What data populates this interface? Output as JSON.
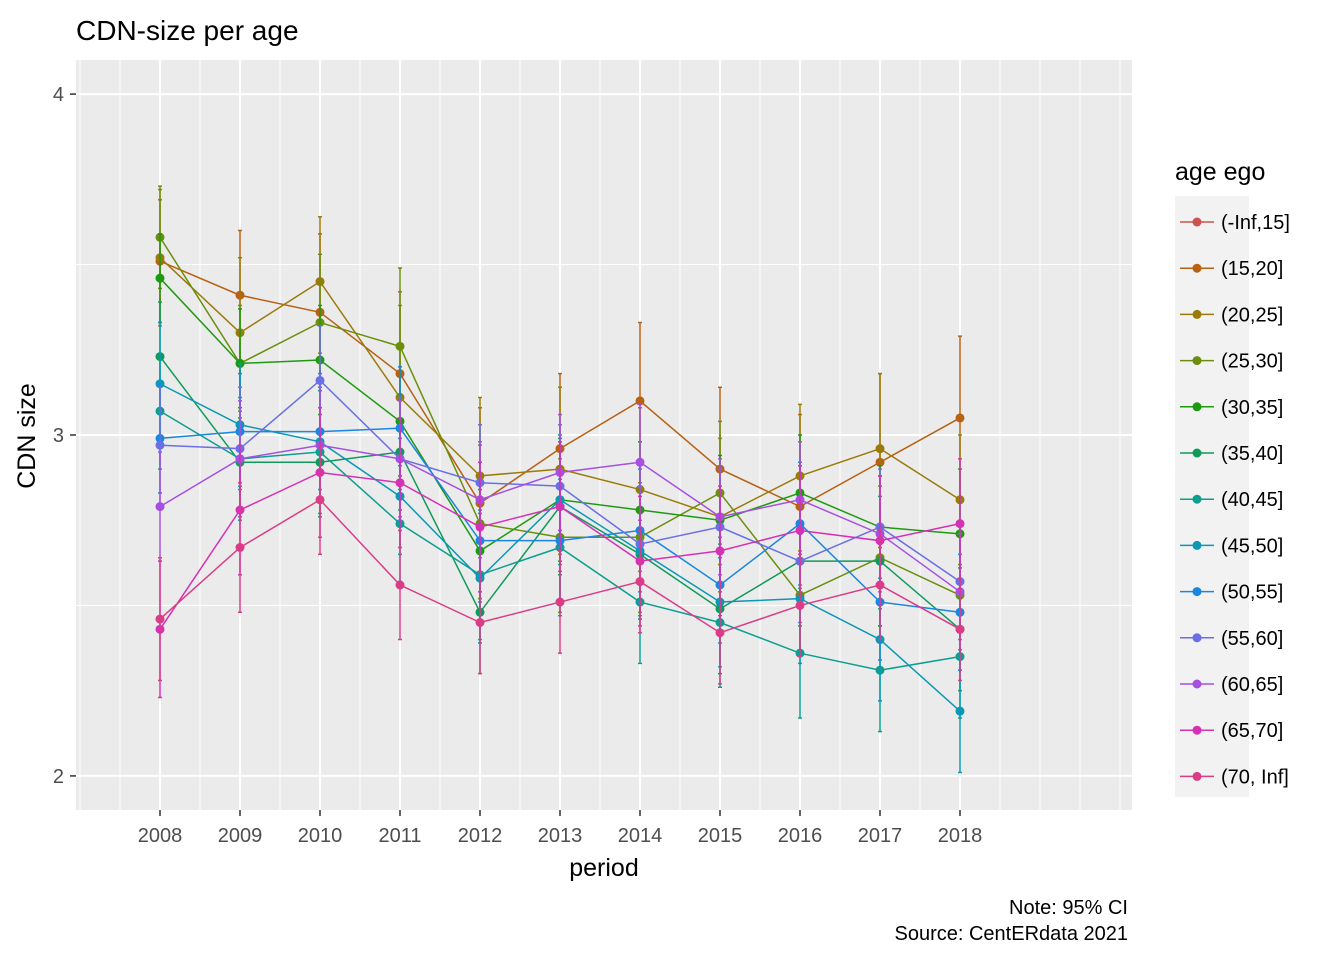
{
  "chart_data": {
    "type": "line",
    "title": "CDN-size per age",
    "xlabel": "period",
    "ylabel": "CDN size",
    "caption": [
      "Note: 95% CI",
      "Source: CentERdata 2021"
    ],
    "legend_title": "age ego",
    "legend_position": "right",
    "grid": true,
    "x": [
      2008,
      2009,
      2010,
      2011,
      2012,
      2013,
      2014,
      2015,
      2016,
      2017,
      2018
    ],
    "xlim": [
      2006.95,
      2020.15
    ],
    "ylim": [
      1.9,
      4.1
    ],
    "y_ticks": [
      2,
      3,
      4
    ],
    "series": [
      {
        "name": "(-Inf,15]",
        "color": "#D0524E",
        "values": [
          null,
          null,
          null,
          null,
          null,
          null,
          null,
          null,
          null,
          null,
          null
        ],
        "lower": [
          null,
          null,
          null,
          null,
          null,
          null,
          null,
          null,
          null,
          null,
          null
        ],
        "upper": [
          null,
          null,
          null,
          null,
          null,
          null,
          null,
          null,
          null,
          null,
          null
        ]
      },
      {
        "name": "(15,20]",
        "color": "#B86013",
        "values": [
          3.51,
          3.41,
          3.36,
          3.18,
          2.8,
          2.96,
          3.1,
          2.9,
          2.79,
          2.92,
          3.05
        ],
        "lower": [
          3.33,
          3.22,
          3.13,
          2.94,
          2.52,
          2.72,
          2.86,
          2.65,
          2.52,
          2.67,
          2.8
        ],
        "upper": [
          3.69,
          3.6,
          3.59,
          3.42,
          3.08,
          3.18,
          3.33,
          3.14,
          3.06,
          3.18,
          3.29
        ]
      },
      {
        "name": "(20,25]",
        "color": "#9A7A08",
        "values": [
          3.52,
          3.3,
          3.45,
          3.11,
          2.88,
          2.9,
          2.84,
          2.76,
          2.88,
          2.96,
          2.81
        ],
        "lower": [
          3.32,
          3.07,
          3.24,
          2.85,
          2.65,
          2.65,
          2.6,
          2.54,
          2.66,
          2.74,
          2.62
        ],
        "upper": [
          3.72,
          3.52,
          3.64,
          3.38,
          3.11,
          3.14,
          3.08,
          2.99,
          3.09,
          3.18,
          3.0
        ]
      },
      {
        "name": "(25,30]",
        "color": "#6B8E0E",
        "values": [
          3.58,
          3.21,
          3.33,
          3.26,
          2.74,
          2.7,
          2.7,
          2.83,
          2.53,
          2.64,
          2.53
        ],
        "lower": [
          3.43,
          3.04,
          3.14,
          3.04,
          2.52,
          2.48,
          2.48,
          2.62,
          2.35,
          2.44,
          2.35
        ],
        "upper": [
          3.73,
          3.38,
          3.53,
          3.49,
          2.97,
          2.93,
          2.93,
          3.04,
          2.71,
          2.85,
          2.72
        ]
      },
      {
        "name": "(30,35]",
        "color": "#1E9A10",
        "values": [
          3.46,
          3.21,
          3.22,
          3.04,
          2.66,
          2.81,
          2.78,
          2.75,
          2.83,
          2.73,
          2.71
        ],
        "lower": [
          3.33,
          3.05,
          3.06,
          2.88,
          2.48,
          2.63,
          2.58,
          2.56,
          2.65,
          2.55,
          2.52
        ],
        "upper": [
          3.59,
          3.37,
          3.38,
          3.2,
          2.84,
          2.98,
          2.98,
          2.94,
          3.0,
          2.91,
          2.9
        ]
      },
      {
        "name": "(35,40]",
        "color": "#109A5A",
        "values": [
          3.23,
          2.92,
          2.92,
          2.95,
          2.48,
          2.79,
          2.65,
          2.49,
          2.63,
          2.63,
          2.43
        ],
        "lower": [
          3.07,
          2.76,
          2.76,
          2.78,
          2.3,
          2.59,
          2.46,
          2.3,
          2.44,
          2.44,
          2.25
        ],
        "upper": [
          3.39,
          3.08,
          3.08,
          3.12,
          2.66,
          2.99,
          2.84,
          2.68,
          2.82,
          2.82,
          2.61
        ]
      },
      {
        "name": "(40,45]",
        "color": "#0C9E8E",
        "values": [
          3.07,
          2.93,
          2.95,
          2.74,
          2.59,
          2.67,
          2.51,
          2.45,
          2.36,
          2.31,
          2.35
        ],
        "lower": [
          2.9,
          2.75,
          2.77,
          2.57,
          2.4,
          2.47,
          2.33,
          2.26,
          2.17,
          2.13,
          2.17
        ],
        "upper": [
          3.24,
          3.11,
          3.13,
          2.91,
          2.78,
          2.87,
          2.69,
          2.64,
          2.55,
          2.49,
          2.53
        ]
      },
      {
        "name": "(45,50]",
        "color": "#0A98B5",
        "values": [
          3.15,
          3.03,
          2.98,
          2.82,
          2.58,
          2.81,
          2.66,
          2.51,
          2.52,
          2.4,
          2.19
        ],
        "lower": [
          2.97,
          2.85,
          2.8,
          2.65,
          2.39,
          2.62,
          2.47,
          2.32,
          2.33,
          2.22,
          2.01
        ],
        "upper": [
          3.33,
          3.21,
          3.16,
          2.99,
          2.77,
          3.0,
          2.85,
          2.7,
          2.71,
          2.58,
          2.37
        ]
      },
      {
        "name": "(50,55]",
        "color": "#1A86E0",
        "values": [
          2.99,
          3.01,
          3.01,
          3.02,
          2.69,
          2.69,
          2.72,
          2.56,
          2.74,
          2.51,
          2.48
        ],
        "lower": [
          2.83,
          2.84,
          2.84,
          2.84,
          2.51,
          2.51,
          2.54,
          2.39,
          2.56,
          2.34,
          2.31
        ],
        "upper": [
          3.15,
          3.18,
          3.18,
          3.2,
          2.87,
          2.87,
          2.9,
          2.73,
          2.92,
          2.68,
          2.65
        ]
      },
      {
        "name": "(55,60]",
        "color": "#6A6FE6",
        "values": [
          2.97,
          2.96,
          3.16,
          2.93,
          2.86,
          2.85,
          2.68,
          2.73,
          2.63,
          2.73,
          2.57
        ],
        "lower": [
          2.8,
          2.78,
          3.0,
          2.75,
          2.69,
          2.67,
          2.51,
          2.56,
          2.45,
          2.56,
          2.4
        ],
        "upper": [
          3.14,
          3.14,
          3.32,
          3.11,
          3.03,
          3.03,
          2.85,
          2.9,
          2.81,
          2.9,
          2.74
        ]
      },
      {
        "name": "(60,65]",
        "color": "#A64FE3",
        "values": [
          2.79,
          2.93,
          2.97,
          2.93,
          2.81,
          2.89,
          2.92,
          2.76,
          2.81,
          2.71,
          2.54
        ],
        "lower": [
          2.63,
          2.76,
          2.8,
          2.76,
          2.64,
          2.72,
          2.75,
          2.59,
          2.64,
          2.54,
          2.37
        ],
        "upper": [
          2.95,
          3.1,
          3.14,
          3.1,
          2.98,
          3.06,
          3.09,
          2.93,
          2.98,
          2.88,
          2.71
        ]
      },
      {
        "name": "(65,70]",
        "color": "#D531B5",
        "values": [
          2.43,
          2.78,
          2.89,
          2.86,
          2.73,
          2.79,
          2.63,
          2.66,
          2.72,
          2.69,
          2.74
        ],
        "lower": [
          2.23,
          2.59,
          2.7,
          2.67,
          2.54,
          2.6,
          2.44,
          2.47,
          2.53,
          2.5,
          2.55
        ],
        "upper": [
          2.63,
          2.97,
          3.08,
          3.05,
          2.92,
          2.98,
          2.82,
          2.85,
          2.91,
          2.88,
          2.93
        ]
      },
      {
        "name": "(70, Inf]",
        "color": "#DA3C87",
        "values": [
          2.46,
          2.67,
          2.81,
          2.56,
          2.45,
          2.51,
          2.57,
          2.42,
          2.5,
          2.56,
          2.43
        ],
        "lower": [
          2.28,
          2.48,
          2.65,
          2.4,
          2.3,
          2.36,
          2.42,
          2.27,
          2.35,
          2.4,
          2.28
        ],
        "upper": [
          2.64,
          2.86,
          2.97,
          2.72,
          2.6,
          2.66,
          2.72,
          2.57,
          2.65,
          2.72,
          2.58
        ]
      }
    ]
  }
}
